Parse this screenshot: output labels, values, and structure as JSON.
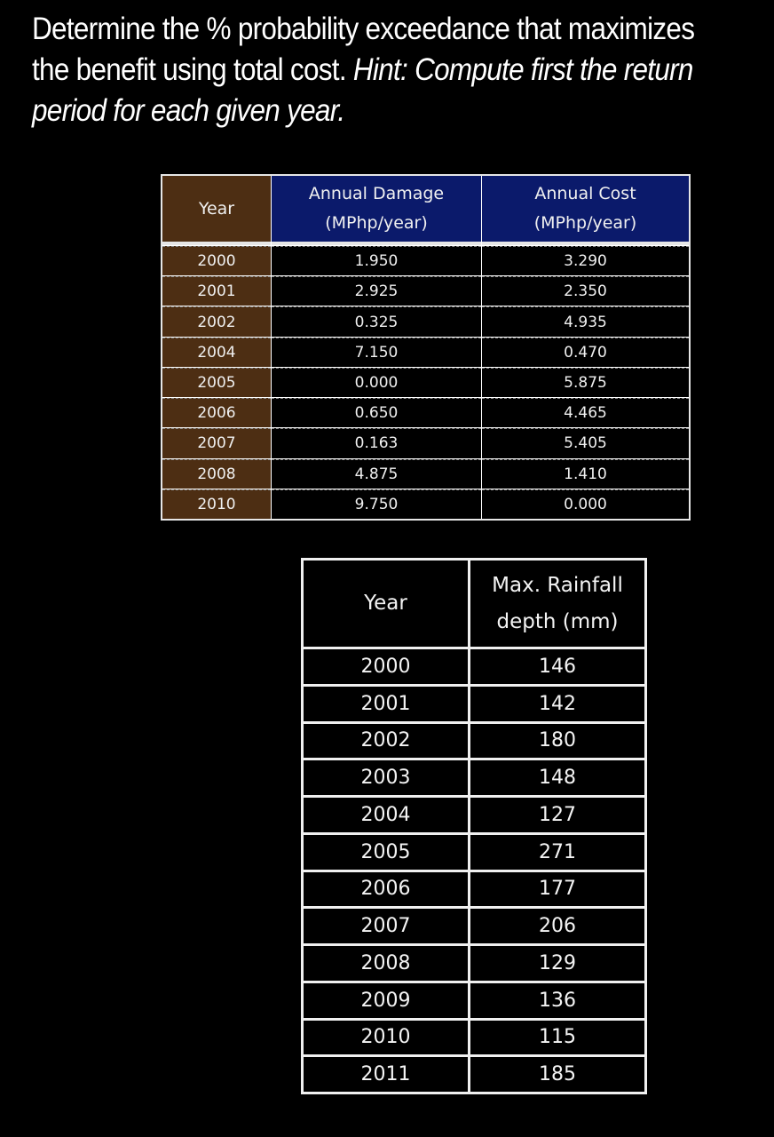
{
  "prompt": {
    "line1": "Determine the % probability exceedance that maximizes",
    "line2_plain": "the benefit using total cost. ",
    "line2_italic": "Hint: Compute first the return",
    "line3_italic": "period for each given year."
  },
  "table1": {
    "headers": {
      "year": "Year",
      "damage_line1": "Annual Damage",
      "damage_line2": "(MPhp/year)",
      "cost_line1": "Annual Cost",
      "cost_line2": "(MPhp/year)"
    },
    "colors": {
      "year_bg": "#4d2e13",
      "header_bg": "#0b1a6b"
    },
    "rows": [
      {
        "year": "2000",
        "damage": "1.950",
        "cost": "3.290"
      },
      {
        "year": "2001",
        "damage": "2.925",
        "cost": "2.350"
      },
      {
        "year": "2002",
        "damage": "0.325",
        "cost": "4.935"
      },
      {
        "year": "2004",
        "damage": "7.150",
        "cost": "0.470"
      },
      {
        "year": "2005",
        "damage": "0.000",
        "cost": "5.875"
      },
      {
        "year": "2006",
        "damage": "0.650",
        "cost": "4.465"
      },
      {
        "year": "2007",
        "damage": "0.163",
        "cost": "5.405"
      },
      {
        "year": "2008",
        "damage": "4.875",
        "cost": "1.410"
      },
      {
        "year": "2010",
        "damage": "9.750",
        "cost": "0.000"
      }
    ]
  },
  "table2": {
    "headers": {
      "year": "Year",
      "rain_line1": "Max. Rainfall",
      "rain_line2": "depth (mm)"
    },
    "rows": [
      {
        "year": "2000",
        "rain": "146"
      },
      {
        "year": "2001",
        "rain": "142"
      },
      {
        "year": "2002",
        "rain": "180"
      },
      {
        "year": "2003",
        "rain": "148"
      },
      {
        "year": "2004",
        "rain": "127"
      },
      {
        "year": "2005",
        "rain": "271"
      },
      {
        "year": "2006",
        "rain": "177"
      },
      {
        "year": "2007",
        "rain": "206"
      },
      {
        "year": "2008",
        "rain": "129"
      },
      {
        "year": "2009",
        "rain": "136"
      },
      {
        "year": "2010",
        "rain": "115"
      },
      {
        "year": "2011",
        "rain": "185"
      }
    ]
  }
}
